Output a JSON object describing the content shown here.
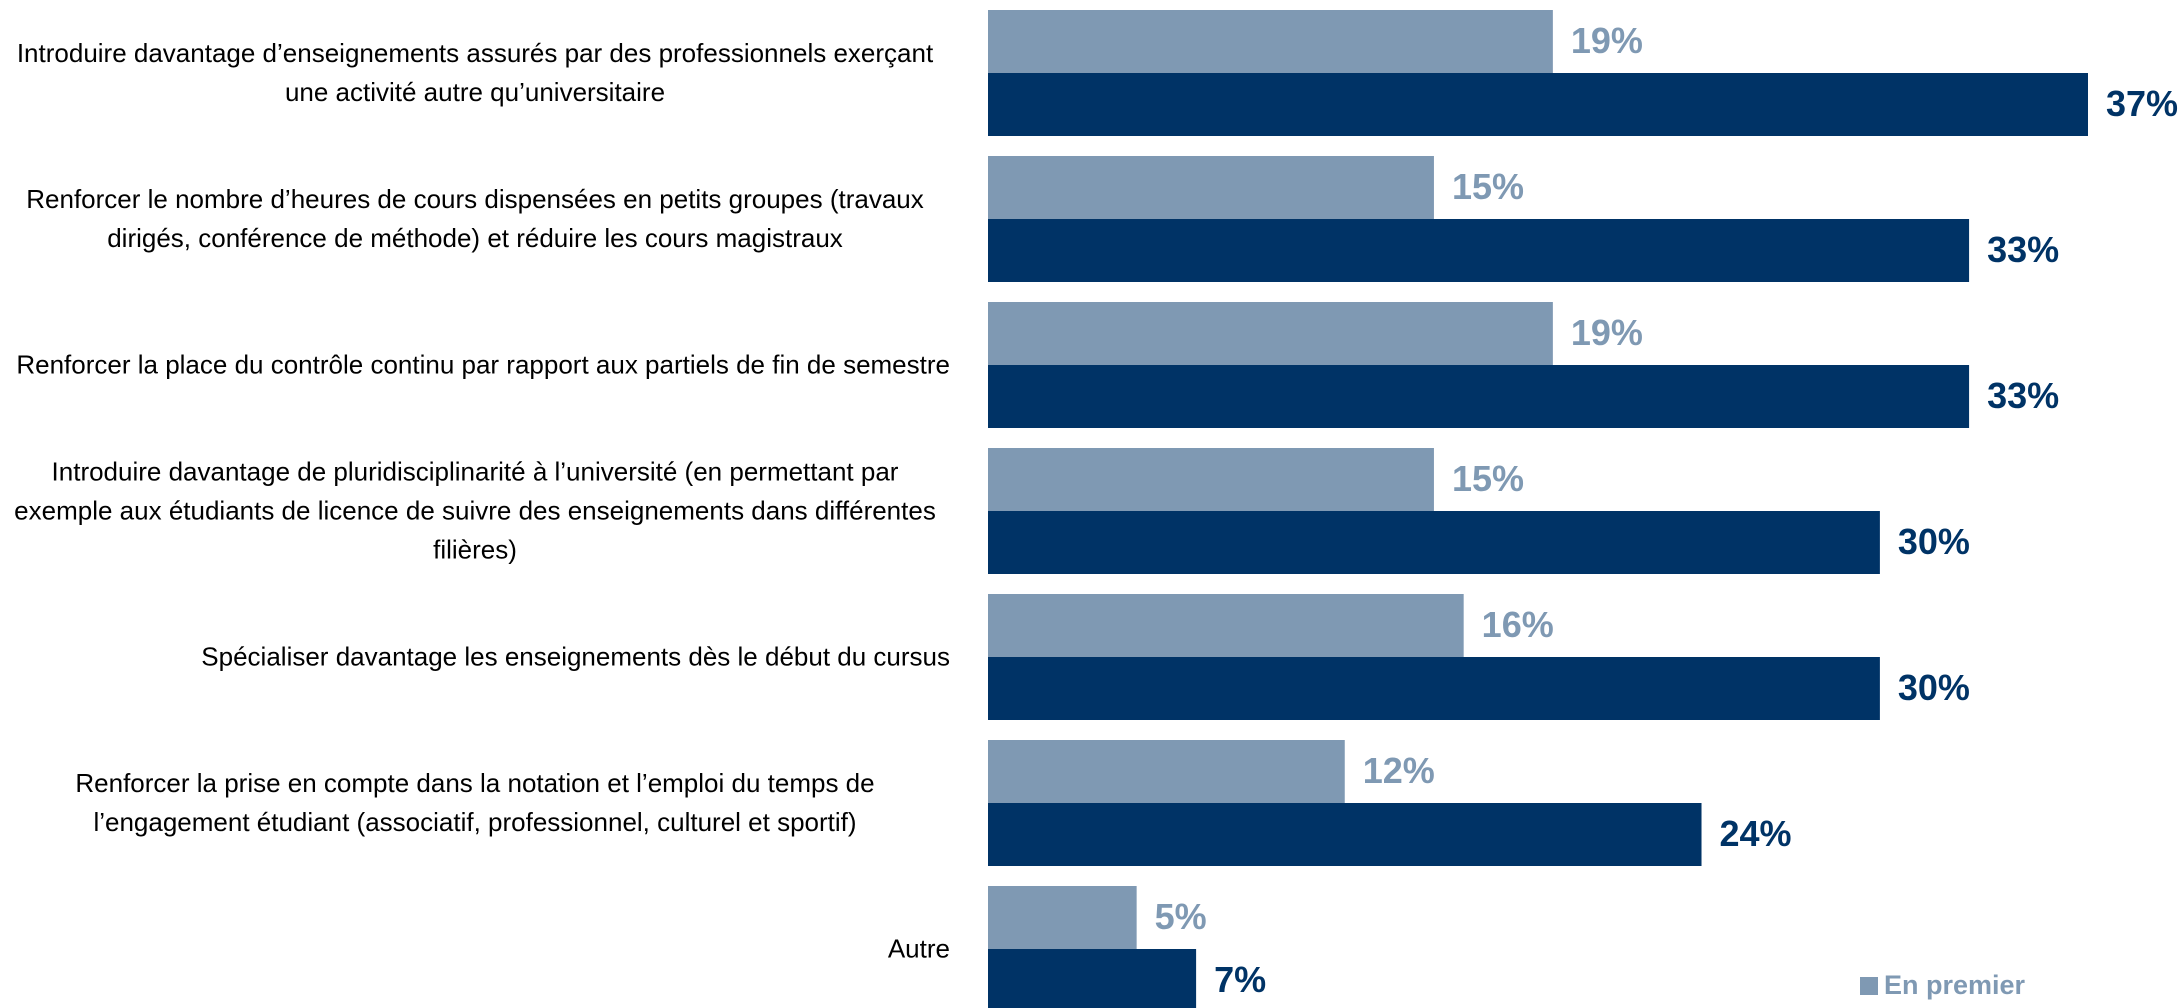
{
  "chart_data": {
    "type": "bar",
    "orientation": "horizontal",
    "categories": [
      "Introduire davantage d’enseignements assurés par des professionnels exerçant une activité autre qu’universitaire",
      "Renforcer le nombre d’heures de cours dispensées en petits groupes (travaux dirigés, conférence de méthode) et réduire les cours magistraux",
      "Renforcer la place du contrôle continu par rapport aux partiels de fin de semestre",
      "Introduire davantage de pluridisciplinarité à l’université (en permettant par exemple aux étudiants de licence de suivre des enseignements dans différentes filières)",
      "Spécialiser davantage les enseignements dès le début du cursus",
      "Renforcer la prise en compte dans la notation et l’emploi du temps de l’engagement étudiant (associatif, professionnel, culturel et sportif)",
      "Autre"
    ],
    "series": [
      {
        "name": "En premier",
        "color": "#7f99b3",
        "values": [
          19,
          15,
          19,
          15,
          16,
          12,
          5
        ],
        "value_labels": [
          "19%",
          "15%",
          "19%",
          "15%",
          "16%",
          "12%",
          "5%"
        ]
      },
      {
        "color": "#003366",
        "values": [
          37,
          33,
          33,
          30,
          30,
          24,
          7
        ],
        "value_labels": [
          "37%",
          "33%",
          "33%",
          "30%",
          "30%",
          "24%",
          "7%"
        ]
      }
    ],
    "xlim": [
      0,
      37
    ]
  }
}
